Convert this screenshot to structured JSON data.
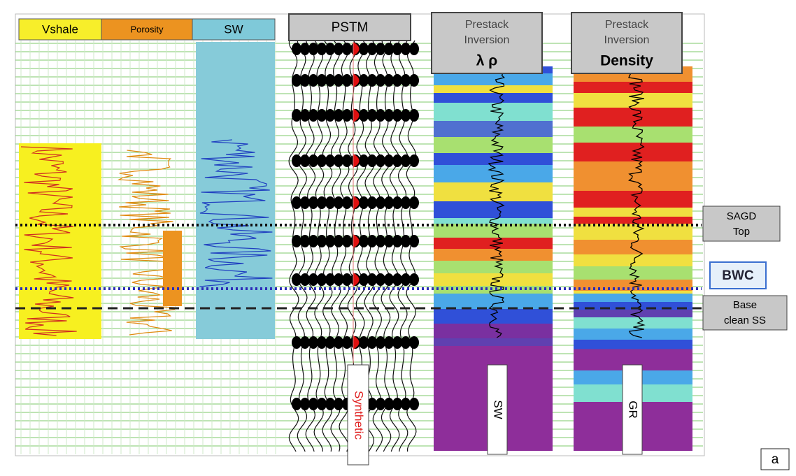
{
  "log_headers": [
    "Vshale",
    "Porosity",
    "SW"
  ],
  "pstm": {
    "title": "PSTM",
    "trace_label": "Synthetic"
  },
  "inversions": [
    {
      "title": [
        "Prestack",
        "Inversion"
      ],
      "attribute": "λ ρ",
      "log_label": "SW"
    },
    {
      "title": [
        "Prestack",
        "Inversion"
      ],
      "attribute": "Density",
      "log_label": "GR"
    }
  ],
  "horizons": [
    {
      "label": [
        "SAGD",
        "Top"
      ]
    },
    {
      "label": [
        "BWC"
      ]
    },
    {
      "label": [
        "Base",
        "clean SS"
      ]
    }
  ],
  "panel_label": "a"
}
